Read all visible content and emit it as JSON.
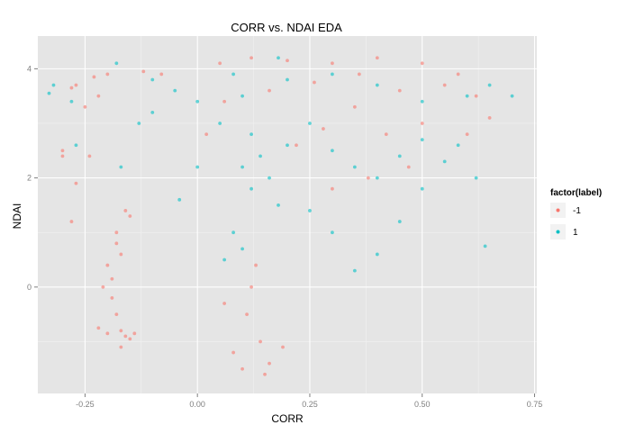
{
  "chart_data": {
    "type": "scatter",
    "title": "CORR vs. NDAI EDA",
    "xlabel": "CORR",
    "ylabel": "NDAI",
    "xlim": [
      -0.355,
      0.755
    ],
    "ylim": [
      -1.95,
      4.6
    ],
    "x_ticks": [
      -0.25,
      0.0,
      0.25,
      0.5,
      0.75
    ],
    "x_tick_labels": [
      "-0.25",
      "0.00",
      "0.25",
      "0.50",
      "0.75"
    ],
    "y_ticks": [
      0,
      2,
      4
    ],
    "y_tick_labels": [
      "0",
      "2",
      "4"
    ],
    "grid": true,
    "legend": {
      "title": "factor(label)",
      "placement": "right",
      "entries": [
        {
          "label": "-1",
          "color": "#F8766D"
        },
        {
          "label": "1",
          "color": "#00BFC4"
        }
      ]
    },
    "series": [
      {
        "name": "-1",
        "color": "#F8766D",
        "points": [
          [
            -0.27,
            3.7
          ],
          [
            -0.28,
            3.65
          ],
          [
            -0.23,
            3.85
          ],
          [
            -0.2,
            3.9
          ],
          [
            -0.22,
            3.5
          ],
          [
            -0.25,
            3.3
          ],
          [
            -0.24,
            2.4
          ],
          [
            -0.27,
            1.9
          ],
          [
            -0.3,
            2.5
          ],
          [
            -0.3,
            2.4
          ],
          [
            -0.28,
            1.2
          ],
          [
            -0.15,
            1.3
          ],
          [
            -0.17,
            0.6
          ],
          [
            -0.2,
            0.4
          ],
          [
            -0.18,
            0.8
          ],
          [
            -0.19,
            0.15
          ],
          [
            -0.21,
            0.0
          ],
          [
            -0.19,
            -0.2
          ],
          [
            -0.18,
            -0.5
          ],
          [
            -0.17,
            -0.8
          ],
          [
            -0.16,
            -0.9
          ],
          [
            -0.22,
            -0.75
          ],
          [
            -0.2,
            -0.85
          ],
          [
            -0.17,
            -1.1
          ],
          [
            -0.15,
            -0.95
          ],
          [
            -0.14,
            -0.85
          ],
          [
            -0.18,
            1.0
          ],
          [
            -0.16,
            1.4
          ],
          [
            -0.12,
            3.95
          ],
          [
            -0.08,
            3.9
          ],
          [
            0.05,
            4.1
          ],
          [
            0.12,
            4.2
          ],
          [
            0.2,
            4.15
          ],
          [
            0.3,
            4.1
          ],
          [
            0.4,
            4.2
          ],
          [
            0.5,
            4.1
          ],
          [
            0.58,
            3.9
          ],
          [
            0.62,
            3.5
          ],
          [
            0.65,
            3.1
          ],
          [
            0.6,
            2.8
          ],
          [
            0.55,
            3.7
          ],
          [
            0.45,
            3.6
          ],
          [
            0.35,
            3.3
          ],
          [
            0.28,
            2.9
          ],
          [
            0.22,
            2.6
          ],
          [
            0.3,
            1.8
          ],
          [
            0.38,
            2.0
          ],
          [
            0.42,
            2.8
          ],
          [
            0.5,
            3.0
          ],
          [
            0.47,
            2.2
          ],
          [
            0.36,
            3.9
          ],
          [
            0.26,
            3.75
          ],
          [
            0.16,
            3.6
          ],
          [
            0.06,
            3.4
          ],
          [
            0.02,
            2.8
          ],
          [
            0.13,
            0.4
          ],
          [
            0.12,
            0.0
          ],
          [
            0.11,
            -0.5
          ],
          [
            0.14,
            -1.0
          ],
          [
            0.16,
            -1.4
          ],
          [
            0.08,
            -1.2
          ],
          [
            0.19,
            -1.1
          ],
          [
            0.1,
            -1.5
          ],
          [
            0.15,
            -1.6
          ],
          [
            0.06,
            -0.3
          ]
        ]
      },
      {
        "name": "1",
        "color": "#00BFC4",
        "points": [
          [
            -0.33,
            3.55
          ],
          [
            -0.32,
            3.7
          ],
          [
            -0.28,
            3.4
          ],
          [
            -0.27,
            2.6
          ],
          [
            -0.18,
            4.1
          ],
          [
            -0.17,
            2.2
          ],
          [
            -0.13,
            3.0
          ],
          [
            -0.1,
            3.8
          ],
          [
            -0.05,
            3.6
          ],
          [
            -0.1,
            3.2
          ],
          [
            0.0,
            3.4
          ],
          [
            0.05,
            3.0
          ],
          [
            0.1,
            3.5
          ],
          [
            0.12,
            2.8
          ],
          [
            0.1,
            2.2
          ],
          [
            0.12,
            1.8
          ],
          [
            0.14,
            2.4
          ],
          [
            0.16,
            2.0
          ],
          [
            0.18,
            1.5
          ],
          [
            0.2,
            2.6
          ],
          [
            0.25,
            3.0
          ],
          [
            0.3,
            2.5
          ],
          [
            0.35,
            2.2
          ],
          [
            0.4,
            2.0
          ],
          [
            0.45,
            2.4
          ],
          [
            0.5,
            2.7
          ],
          [
            0.55,
            2.3
          ],
          [
            0.58,
            2.6
          ],
          [
            0.6,
            3.5
          ],
          [
            0.65,
            3.7
          ],
          [
            0.7,
            3.5
          ],
          [
            0.62,
            2.0
          ],
          [
            0.5,
            1.8
          ],
          [
            0.45,
            1.2
          ],
          [
            0.4,
            0.6
          ],
          [
            0.35,
            0.3
          ],
          [
            0.3,
            1.0
          ],
          [
            0.25,
            1.4
          ],
          [
            0.64,
            0.75
          ],
          [
            0.06,
            0.5
          ],
          [
            0.08,
            1.0
          ],
          [
            0.1,
            0.7
          ],
          [
            0.2,
            3.8
          ],
          [
            0.3,
            3.9
          ],
          [
            0.4,
            3.7
          ],
          [
            0.5,
            3.4
          ],
          [
            0.18,
            4.2
          ],
          [
            0.08,
            3.9
          ],
          [
            0.0,
            2.2
          ],
          [
            -0.04,
            1.6
          ]
        ]
      }
    ]
  }
}
